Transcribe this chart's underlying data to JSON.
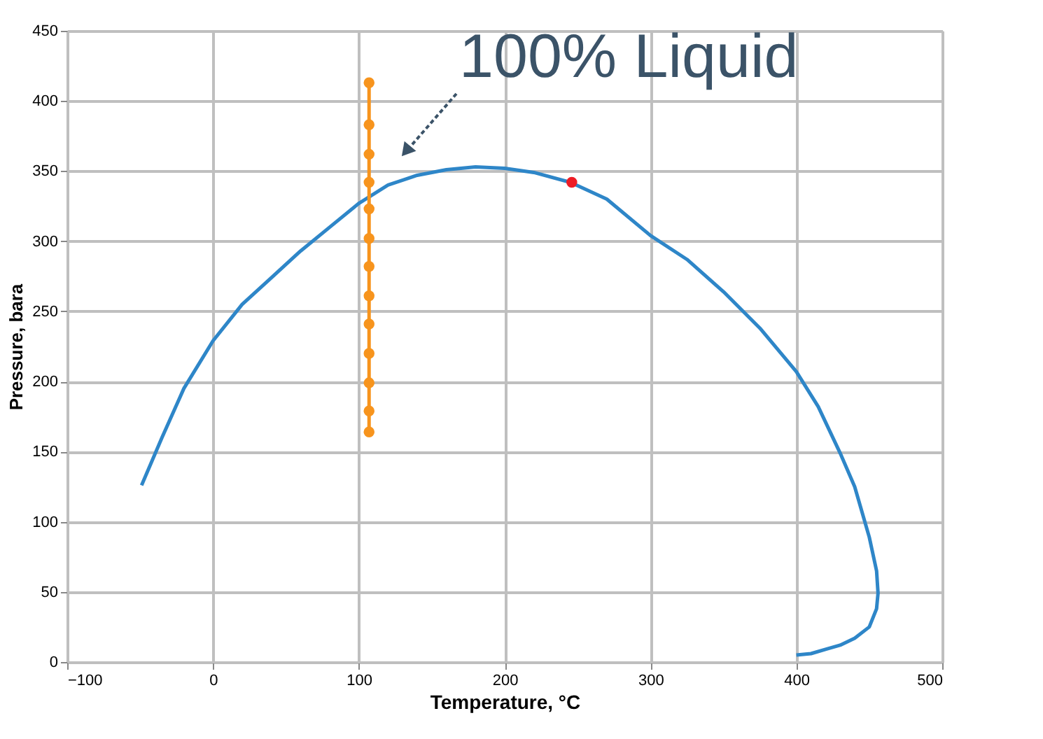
{
  "chart_data": {
    "type": "line",
    "xlabel": "Temperature, °C",
    "ylabel": "Pressure, bara",
    "xlim": [
      -100,
      500
    ],
    "xticks": [
      -100,
      0,
      100,
      200,
      300,
      400,
      500
    ],
    "ylim": [
      0,
      450
    ],
    "yticks": [
      0,
      50,
      100,
      150,
      200,
      250,
      300,
      350,
      400,
      450
    ],
    "grid": true,
    "legend": false,
    "series": [
      {
        "color": "#2e86c8",
        "marker": "none",
        "x": [
          -49,
          -35,
          -20,
          0,
          20,
          40,
          60,
          80,
          100,
          120,
          140,
          160,
          180,
          200,
          220,
          245,
          270,
          300,
          325,
          350,
          375,
          400,
          415,
          430,
          440,
          450,
          455,
          456,
          455,
          450,
          440,
          430,
          420,
          410,
          400
        ],
        "values": [
          126,
          160,
          195,
          229,
          255,
          274,
          293,
          310,
          327,
          340,
          347,
          351,
          353,
          352,
          349,
          342,
          330,
          304,
          287,
          264,
          238,
          207,
          182,
          149,
          125,
          89,
          65,
          49,
          38,
          25,
          17,
          12,
          9,
          6,
          5
        ]
      },
      {
        "color": "#f7941d",
        "marker": "circle",
        "x": [
          107,
          107,
          107,
          107,
          107,
          107,
          107,
          107,
          107,
          107,
          107,
          107,
          107
        ],
        "values": [
          413,
          383,
          362,
          342,
          323,
          302,
          282,
          261,
          241,
          220,
          199,
          179,
          164
        ]
      },
      {
        "type": "scatter",
        "color": "#ee1c25",
        "marker": "circle",
        "x": [
          246
        ],
        "values": [
          342
        ]
      }
    ],
    "annotations": [
      "100% Liquid"
    ]
  }
}
